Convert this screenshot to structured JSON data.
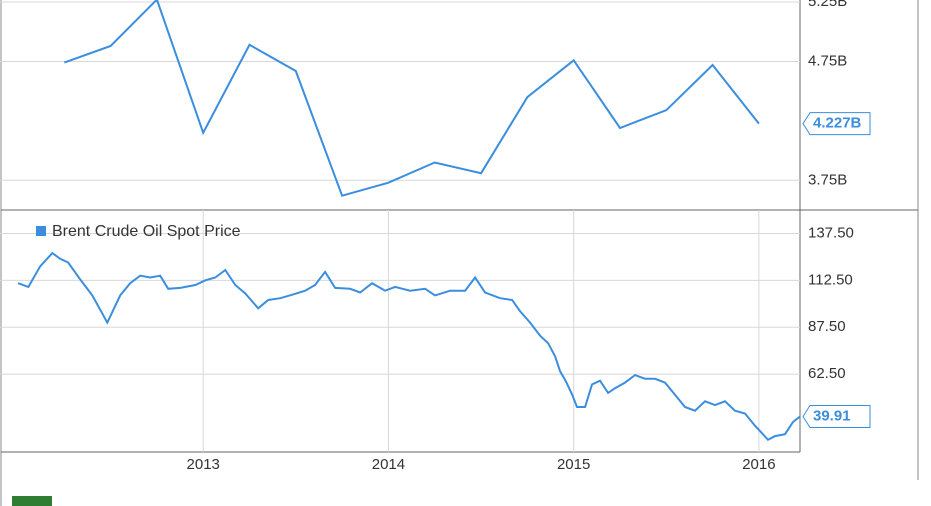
{
  "charts": [
    {
      "type": "line",
      "color": "#3b8ede",
      "grid": true,
      "end_label": true,
      "x": [
        2012.25,
        2012.5,
        2012.75,
        2013.0,
        2013.25,
        2013.5,
        2013.75,
        2014.0,
        2014.25,
        2014.5,
        2014.75,
        2015.0,
        2015.25,
        2015.5,
        2015.75,
        2016.0
      ],
      "values": [
        4.74,
        4.88,
        5.27,
        4.15,
        4.89,
        4.67,
        3.62,
        3.73,
        3.9,
        3.81,
        4.45,
        4.76,
        4.19,
        4.34,
        4.72,
        4.227
      ],
      "value_labels": [
        null,
        null,
        null,
        null,
        null,
        null,
        null,
        null,
        null,
        null,
        null,
        null,
        null,
        null,
        null,
        "4.227B"
      ],
      "xlim": [
        2012.0,
        2016.222
      ],
      "ylim": [
        3.5,
        5.267
      ],
      "yticks": [
        {
          "value": 3.75,
          "label": "3.75B"
        },
        {
          "value": 4.75,
          "label": "4.75B"
        },
        {
          "value": 5.25,
          "label": "5.25B"
        }
      ]
    },
    {
      "type": "line",
      "color": "#3b8ede",
      "grid": true,
      "end_label": true,
      "legend": "top-left",
      "series": [
        {
          "name": "Brent Crude Oil Spot Price",
          "color": "#3b8ede"
        }
      ],
      "x": [
        2012.0,
        2012.056,
        2012.12,
        2012.185,
        2012.228,
        2012.271,
        2012.336,
        2012.401,
        2012.482,
        2012.552,
        2012.606,
        2012.66,
        2012.714,
        2012.768,
        2012.811,
        2012.876,
        2012.957,
        2013.011,
        2013.065,
        2013.119,
        2013.173,
        2013.227,
        2013.297,
        2013.351,
        2013.416,
        2013.486,
        2013.55,
        2013.604,
        2013.658,
        2013.712,
        2013.793,
        2013.847,
        2013.912,
        2013.982,
        2014.036,
        2014.117,
        2014.198,
        2014.252,
        2014.333,
        2014.414,
        2014.468,
        2014.522,
        2014.603,
        2014.668,
        2014.711,
        2014.765,
        2014.819,
        2014.862,
        2014.9,
        2014.927,
        2014.959,
        2014.992,
        2015.018,
        2015.062,
        2015.099,
        2015.142,
        2015.186,
        2015.223,
        2015.277,
        2015.331,
        2015.385,
        2015.439,
        2015.493,
        2015.547,
        2015.601,
        2015.655,
        2015.709,
        2015.763,
        2015.817,
        2015.871,
        2015.925,
        2015.979,
        2016.017,
        2016.049,
        2016.087,
        2016.141,
        2016.184,
        2016.222
      ],
      "values": [
        111,
        109,
        120,
        127,
        124,
        122,
        113,
        104.5,
        90,
        104.5,
        111,
        115,
        114,
        115,
        108,
        108.5,
        110,
        112.5,
        114,
        118,
        110,
        105.5,
        97.6,
        102,
        103,
        105,
        107,
        110,
        117,
        108.5,
        108,
        106,
        111,
        107,
        109,
        107,
        108,
        104.5,
        107,
        107,
        114,
        106,
        103,
        102,
        96,
        90,
        83,
        79,
        72,
        64,
        58.5,
        51.5,
        45,
        45,
        57,
        59,
        52.5,
        55,
        58,
        62,
        60,
        60,
        58,
        51.5,
        45,
        43,
        48,
        46,
        48,
        43,
        41.5,
        35,
        31,
        27.5,
        29.5,
        30.5,
        37,
        39.91
      ],
      "xlim": [
        2012.0,
        2016.222
      ],
      "ylim": [
        21,
        150
      ],
      "xticks": [
        2013,
        2014,
        2015,
        2016
      ],
      "yticks": [
        {
          "value": 62.5,
          "label": "62.50"
        },
        {
          "value": 87.5,
          "label": "87.50"
        },
        {
          "value": 112.5,
          "label": "112.50"
        },
        {
          "value": 137.5,
          "label": "137.50"
        }
      ]
    }
  ]
}
